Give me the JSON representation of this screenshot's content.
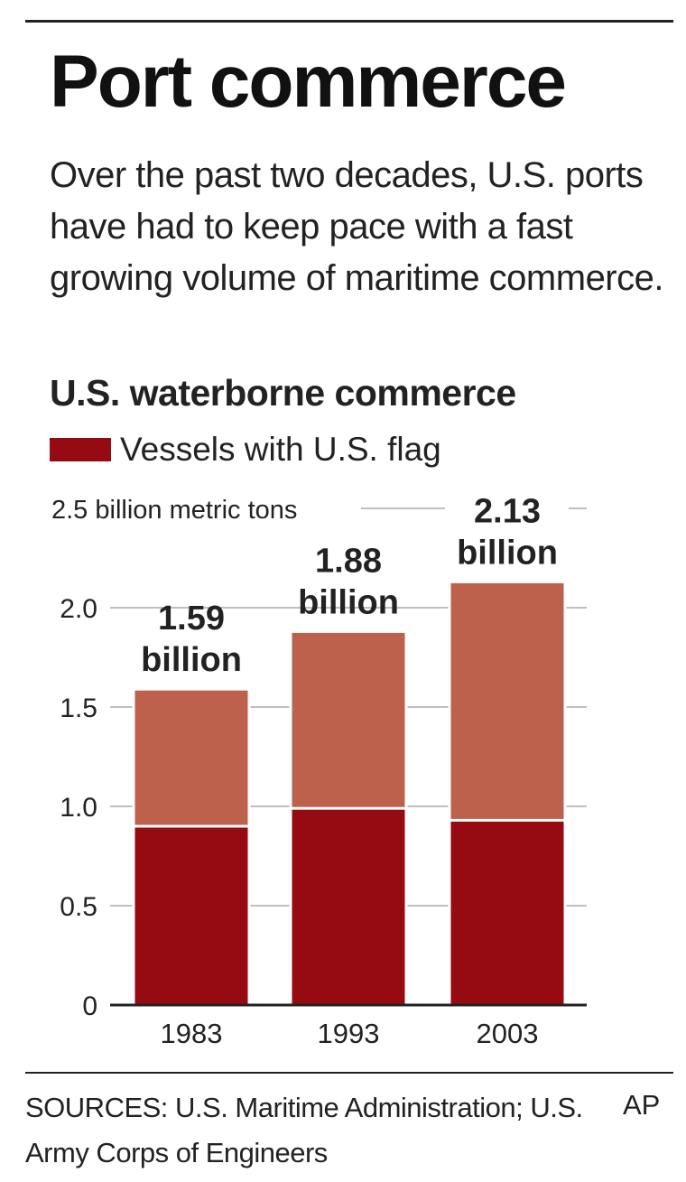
{
  "headline": "Port commerce",
  "intro": "Over the past two decades, U.S. ports have had to keep pace with a fast growing volume of maritime commerce.",
  "colors": {
    "us_flag": "#960a12",
    "total": "#bd604c",
    "gridline": "#bfbfbf",
    "axis": "#222222"
  },
  "sources": "SOURCES: U.S. Maritime Administration; U.S. Army Corps of Engineers",
  "credit": "AP",
  "chart_data": {
    "type": "bar",
    "title": "U.S. waterborne commerce",
    "unit_label": "2.5 billion metric tons",
    "legend": [
      {
        "name": "Vessels with U.S. flag",
        "color": "#960a12"
      }
    ],
    "categories": [
      "1983",
      "1993",
      "2003"
    ],
    "series": [
      {
        "name": "Vessels with U.S. flag",
        "values": [
          0.9,
          0.99,
          0.93
        ]
      },
      {
        "values": [
          1.59,
          1.88,
          2.13
        ]
      }
    ],
    "total_labels": [
      [
        "1.59",
        "billion"
      ],
      [
        "1.88",
        "billion"
      ],
      [
        "2.13",
        "billion"
      ]
    ],
    "yticks": [
      "0",
      "0.5",
      "1.0",
      "1.5",
      "2.0"
    ],
    "ylim": [
      0,
      2.5
    ],
    "grid": true
  }
}
